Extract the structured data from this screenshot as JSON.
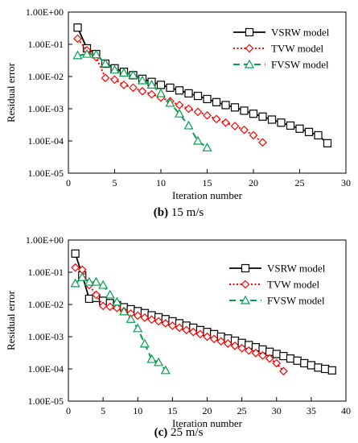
{
  "charts": [
    {
      "caption_letter": "(b)",
      "caption_text": " 15 m/s",
      "chart_data": {
        "type": "line",
        "xlabel": "Iteration number",
        "ylabel": "Residual error",
        "xlim": [
          0,
          30
        ],
        "xticks": [
          0,
          5,
          10,
          15,
          20,
          25,
          30
        ],
        "ylim": [
          1e-05,
          1
        ],
        "yscale": "log",
        "yticks": [
          "1.00E-05",
          "1.00E-04",
          "1.00E-03",
          "1.00E-02",
          "1.00E-01",
          "1.00E+00"
        ],
        "legend_position": "top-right",
        "series": [
          {
            "name": "VSRW model",
            "color": "#000000",
            "dash": "solid",
            "marker": "square",
            "x": [
              1,
              2,
              3,
              4,
              5,
              6,
              7,
              8,
              9,
              10,
              11,
              12,
              13,
              14,
              15,
              16,
              17,
              18,
              19,
              20,
              21,
              22,
              23,
              24,
              25,
              26,
              27,
              28
            ],
            "y": [
              0.33,
              0.075,
              0.05,
              0.025,
              0.018,
              0.014,
              0.011,
              0.0085,
              0.0068,
              0.0055,
              0.0045,
              0.0037,
              0.003,
              0.0025,
              0.002,
              0.0016,
              0.0013,
              0.0011,
              0.00087,
              0.0007,
              0.00057,
              0.00046,
              0.00037,
              0.0003,
              0.00024,
              0.00019,
              0.00015,
              8.5e-05
            ]
          },
          {
            "name": "TVW model",
            "color": "#ff0000",
            "dash": "dotted",
            "marker": "diamond",
            "x": [
              1,
              2,
              3,
              4,
              5,
              6,
              7,
              8,
              9,
              10,
              11,
              12,
              13,
              14,
              15,
              16,
              17,
              18,
              19,
              20,
              21
            ],
            "y": [
              0.15,
              0.065,
              0.04,
              0.009,
              0.008,
              0.0055,
              0.0045,
              0.0035,
              0.0028,
              0.0022,
              0.0017,
              0.0013,
              0.001,
              0.0008,
              0.00062,
              0.00048,
              0.00037,
              0.00029,
              0.00022,
              0.00015,
              9e-05
            ]
          },
          {
            "name": "FVSW model",
            "color": "#00a050",
            "dash": "dashed",
            "marker": "triangle",
            "x": [
              1,
              2,
              3,
              4,
              5,
              6,
              7,
              8,
              9,
              10,
              11,
              12,
              13,
              14,
              15
            ],
            "y": [
              0.045,
              0.05,
              0.048,
              0.025,
              0.016,
              0.013,
              0.011,
              0.0075,
              0.0055,
              0.003,
              0.0015,
              0.0007,
              0.0003,
              0.0001,
              6.2e-05
            ]
          }
        ]
      }
    },
    {
      "caption_letter": "(c)",
      "caption_text": " 25 m/s",
      "chart_data": {
        "type": "line",
        "xlabel": "Iteration number",
        "ylabel": "Residual error",
        "xlim": [
          0,
          40
        ],
        "xticks": [
          0,
          5,
          10,
          15,
          20,
          25,
          30,
          35,
          40
        ],
        "ylim": [
          1e-05,
          1
        ],
        "yscale": "log",
        "yticks": [
          "1.00E-05",
          "1.00E-04",
          "1.00E-03",
          "1.00E-02",
          "1.00E-01",
          "1.00E+00"
        ],
        "legend_position": "top-right",
        "series": [
          {
            "name": "VSRW model",
            "color": "#000000",
            "dash": "solid",
            "marker": "square",
            "x": [
              1,
              2,
              3,
              4,
              5,
              6,
              7,
              8,
              9,
              10,
              11,
              12,
              13,
              14,
              15,
              16,
              17,
              18,
              19,
              20,
              21,
              22,
              23,
              24,
              25,
              26,
              27,
              28,
              29,
              30,
              31,
              32,
              33,
              34,
              35,
              36,
              37,
              38
            ],
            "y": [
              0.38,
              0.08,
              0.015,
              0.016,
              0.013,
              0.011,
              0.0095,
              0.0082,
              0.0071,
              0.0062,
              0.0054,
              0.0046,
              0.004,
              0.0035,
              0.003,
              0.0026,
              0.0022,
              0.0019,
              0.0016,
              0.0014,
              0.0012,
              0.001,
              0.00088,
              0.00075,
              0.00064,
              0.00055,
              0.00047,
              0.0004,
              0.00034,
              0.00029,
              0.00025,
              0.00021,
              0.00018,
              0.00015,
              0.00013,
              0.00011,
              0.0001,
              9e-05
            ]
          },
          {
            "name": "TVW model",
            "color": "#ff0000",
            "dash": "dotted",
            "marker": "diamond",
            "x": [
              1,
              2,
              3,
              4,
              5,
              6,
              7,
              8,
              9,
              10,
              11,
              12,
              13,
              14,
              15,
              16,
              17,
              18,
              19,
              20,
              21,
              22,
              23,
              24,
              25,
              26,
              27,
              28,
              29,
              30,
              31
            ],
            "y": [
              0.14,
              0.12,
              0.04,
              0.02,
              0.009,
              0.0085,
              0.0078,
              0.0062,
              0.0052,
              0.0045,
              0.0039,
              0.0034,
              0.003,
              0.0026,
              0.0022,
              0.0019,
              0.0016,
              0.0014,
              0.0012,
              0.001,
              0.00085,
              0.00072,
              0.00061,
              0.00052,
              0.00044,
              0.00037,
              0.00031,
              0.00026,
              0.00021,
              0.00015,
              8.5e-05
            ]
          },
          {
            "name": "FVSW model",
            "color": "#00a050",
            "dash": "dashed",
            "marker": "triangle",
            "x": [
              1,
              2,
              3,
              4,
              5,
              6,
              7,
              8,
              9,
              10,
              11,
              12,
              13,
              14
            ],
            "y": [
              0.045,
              0.07,
              0.05,
              0.05,
              0.04,
              0.02,
              0.012,
              0.006,
              0.0035,
              0.0018,
              0.0006,
              0.0002,
              0.00016,
              9e-05
            ]
          }
        ]
      }
    }
  ]
}
